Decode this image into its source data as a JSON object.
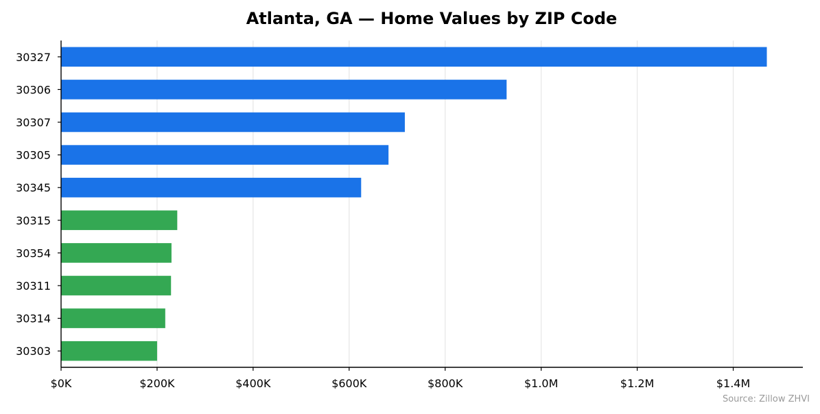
{
  "chart_data": {
    "type": "bar",
    "orientation": "horizontal",
    "title": "Atlanta, GA — Home Values by ZIP Code",
    "xlabel": "",
    "ylabel": "",
    "categories": [
      "30327",
      "30306",
      "30307",
      "30305",
      "30345",
      "30315",
      "30354",
      "30311",
      "30314",
      "30303"
    ],
    "values": [
      1470000,
      928000,
      716000,
      682000,
      625000,
      242000,
      230000,
      229000,
      217000,
      200000
    ],
    "bar_colors": [
      "#1a73e8",
      "#1a73e8",
      "#1a73e8",
      "#1a73e8",
      "#1a73e8",
      "#34a853",
      "#34a853",
      "#34a853",
      "#34a853",
      "#34a853"
    ],
    "xlim": [
      0,
      1545000
    ],
    "x_ticks": [
      0,
      200000,
      400000,
      600000,
      800000,
      1000000,
      1200000,
      1400000
    ],
    "x_tick_labels": [
      "$0K",
      "$200K",
      "$400K",
      "$600K",
      "$800K",
      "$1.0M",
      "$1.2M",
      "$1.4M"
    ],
    "grid": "vertical",
    "legend": "none",
    "source": "Source: Zillow ZHVI"
  }
}
